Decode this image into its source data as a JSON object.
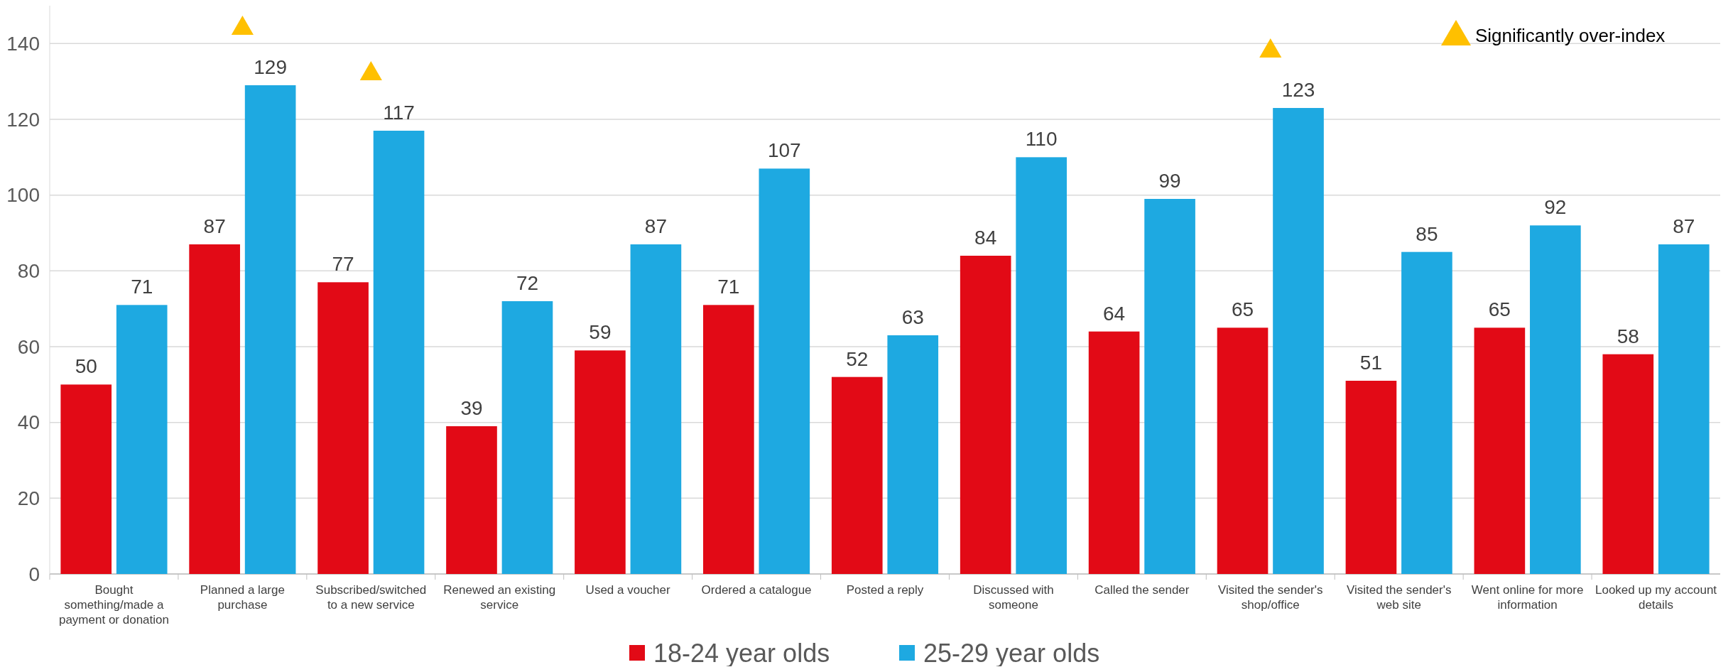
{
  "chart_data": {
    "type": "bar",
    "categories": [
      "Bought something/made a payment or donation",
      "Planned a large purchase",
      "Subscribed/switched to a new service",
      "Renewed an existing service",
      "Used a voucher",
      "Ordered a catalogue",
      "Posted a reply",
      "Discussed with someone",
      "Called the sender",
      "Visited the sender's shop/office",
      "Visited the sender's web site",
      "Went online for more information",
      "Looked up my account details"
    ],
    "series": [
      {
        "name": "18-24 year olds",
        "color": "#e20a16",
        "values": [
          50,
          87,
          77,
          39,
          59,
          71,
          52,
          84,
          64,
          65,
          51,
          65,
          58
        ],
        "value_labels": [
          "50",
          "87",
          "77",
          "39",
          "59",
          "71",
          "52",
          "84",
          "64",
          "65",
          "51",
          "65",
          "58"
        ]
      },
      {
        "name": "25-29 year olds",
        "color": "#1ea9e1",
        "values": [
          71,
          129,
          117,
          72,
          87,
          107,
          63,
          110,
          99,
          123,
          85,
          92,
          87
        ],
        "value_labels": [
          "71",
          "129",
          "117",
          "72",
          "87",
          "107",
          "63",
          "110",
          "99",
          "123",
          "85",
          "92",
          "87"
        ]
      },
      {
        "name": "Significantly over-index",
        "type": "scatter",
        "marker": "triangle",
        "color": "#ffc000",
        "x": [
          "Planned a large purchase",
          "Subscribed/switched to a new service",
          "Visited the sender's shop/office"
        ],
        "values": [
          144,
          132,
          138
        ]
      }
    ],
    "ylim": [
      0,
      150
    ],
    "yticks": [
      0,
      20,
      40,
      60,
      80,
      100,
      120,
      140
    ],
    "grid": "y",
    "legend": "bottom"
  }
}
